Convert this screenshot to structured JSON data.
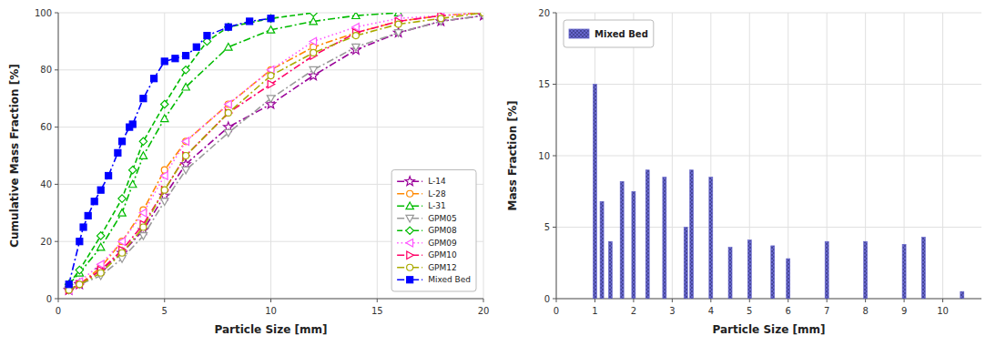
{
  "chart_data": [
    {
      "type": "line",
      "x_label": "Particle Size [mm]",
      "y_label": "Cumulative Mass Fraction [%]",
      "xlim": [
        0,
        20
      ],
      "xticks": [
        0,
        5,
        10,
        15,
        20
      ],
      "ylim": [
        0,
        100
      ],
      "yticks": [
        0,
        20,
        40,
        60,
        80,
        100
      ],
      "grid": true,
      "legend": "lower right",
      "series": [
        {
          "name": "L-14",
          "color": "#990099",
          "line_style": "dashdot",
          "marker": "star-open",
          "x": [
            0.5,
            1.0,
            2.0,
            3.0,
            4.0,
            5.0,
            6.0,
            8.0,
            10.0,
            12.0,
            14.0,
            16.0,
            18.0,
            20.0
          ],
          "values": [
            3,
            5,
            10,
            16,
            24,
            36,
            47,
            60,
            68,
            78,
            87,
            93,
            97,
            99
          ]
        },
        {
          "name": "L-28",
          "color": "#ff8800",
          "line_style": "dashdot",
          "marker": "circle-open",
          "x": [
            0.5,
            1.0,
            2.0,
            3.0,
            4.0,
            5.0,
            6.0,
            8.0,
            10.0,
            12.0,
            14.0,
            16.0,
            18.0,
            20.0
          ],
          "values": [
            3,
            5,
            11,
            20,
            31,
            45,
            55,
            68,
            80,
            88,
            93,
            97,
            99,
            100
          ]
        },
        {
          "name": "L-31",
          "color": "#00bb00",
          "line_style": "dashdot",
          "marker": "triangle-up-open",
          "x": [
            0.5,
            1.0,
            2.0,
            3.0,
            3.5,
            4.0,
            5.0,
            6.0,
            8.0,
            10.0,
            12.0,
            14.0,
            16.0
          ],
          "values": [
            5,
            9,
            18,
            30,
            40,
            50,
            63,
            74,
            88,
            94,
            97,
            99,
            100
          ]
        },
        {
          "name": "GPM05",
          "color": "#999999",
          "line_style": "dashdot",
          "marker": "triangle-down-open",
          "x": [
            0.5,
            1.0,
            2.0,
            3.0,
            4.0,
            5.0,
            6.0,
            8.0,
            10.0,
            12.0,
            14.0,
            16.0,
            18.0,
            20.0
          ],
          "values": [
            3,
            5,
            8,
            14,
            22,
            34,
            45,
            58,
            70,
            80,
            88,
            93,
            97,
            99
          ]
        },
        {
          "name": "GPM08",
          "color": "#00bb00",
          "line_style": "dashed",
          "marker": "diamond-open",
          "x": [
            0.5,
            1.0,
            2.0,
            3.0,
            3.5,
            4.0,
            5.0,
            6.0,
            7.0,
            8.0,
            10.0,
            12.0
          ],
          "values": [
            5,
            10,
            22,
            35,
            45,
            55,
            68,
            80,
            90,
            95,
            98,
            100
          ]
        },
        {
          "name": "GPM09",
          "color": "#ff55ff",
          "line_style": "dotted",
          "marker": "triangle-left-open",
          "x": [
            0.5,
            1.0,
            2.0,
            3.0,
            4.0,
            5.0,
            6.0,
            8.0,
            10.0,
            12.0,
            14.0,
            16.0,
            18.0,
            20.0
          ],
          "values": [
            3,
            6,
            12,
            20,
            30,
            43,
            55,
            68,
            80,
            90,
            95,
            98,
            99,
            100
          ]
        },
        {
          "name": "GPM10",
          "color": "#ff0066",
          "line_style": "dashdot",
          "marker": "triangle-right-open",
          "x": [
            0.5,
            1.0,
            2.0,
            3.0,
            4.0,
            5.0,
            6.0,
            8.0,
            10.0,
            12.0,
            14.0,
            16.0,
            18.0
          ],
          "values": [
            3,
            5,
            10,
            17,
            26,
            38,
            50,
            65,
            75,
            85,
            93,
            97,
            99
          ]
        },
        {
          "name": "GPM12",
          "color": "#aaaa00",
          "line_style": "dashdot",
          "marker": "circle-open",
          "x": [
            0.5,
            1.0,
            2.0,
            3.0,
            4.0,
            5.0,
            6.0,
            8.0,
            10.0,
            12.0,
            14.0,
            16.0,
            18.0,
            20.0
          ],
          "values": [
            3,
            5,
            9,
            16,
            25,
            38,
            50,
            65,
            78,
            86,
            92,
            96,
            98,
            100
          ]
        },
        {
          "name": "Mixed Bed",
          "color": "#0000ff",
          "line_style": "dashdot",
          "marker": "square",
          "x": [
            0.5,
            1.0,
            1.18,
            1.4,
            1.7,
            2.0,
            2.36,
            2.8,
            3.0,
            3.35,
            3.5,
            4.0,
            4.5,
            5.0,
            5.5,
            6.0,
            6.5,
            7.0,
            8.0,
            9.0,
            10.0
          ],
          "values": [
            5,
            20,
            25,
            29,
            34,
            38,
            43,
            51,
            55,
            60,
            61,
            70,
            77,
            83,
            84,
            85,
            88,
            92,
            95,
            97,
            98
          ]
        }
      ]
    },
    {
      "type": "bar",
      "x_label": "Particle Size [mm]",
      "y_label": "Mass Fraction [%]",
      "xlim": [
        0,
        11
      ],
      "xticks": [
        0,
        1,
        2,
        3,
        4,
        5,
        6,
        7,
        8,
        9,
        10
      ],
      "ylim": [
        0,
        20
      ],
      "yticks": [
        0,
        5,
        10,
        15,
        20
      ],
      "grid": true,
      "legend": "upper left",
      "series": [
        {
          "name": "Mixed Bed",
          "color": "#6666cc",
          "x": [
            1.0,
            1.18,
            1.4,
            1.7,
            2.0,
            2.36,
            2.8,
            3.35,
            3.5,
            4.0,
            4.5,
            5.0,
            5.6,
            6.0,
            7.0,
            8.0,
            9.0,
            9.5,
            10.5
          ],
          "values": [
            15.0,
            6.8,
            4.0,
            8.2,
            7.5,
            9.0,
            8.5,
            5.0,
            9.0,
            8.5,
            3.6,
            4.1,
            3.7,
            2.8,
            4.0,
            4.0,
            3.8,
            4.3,
            0.5
          ]
        }
      ]
    }
  ]
}
